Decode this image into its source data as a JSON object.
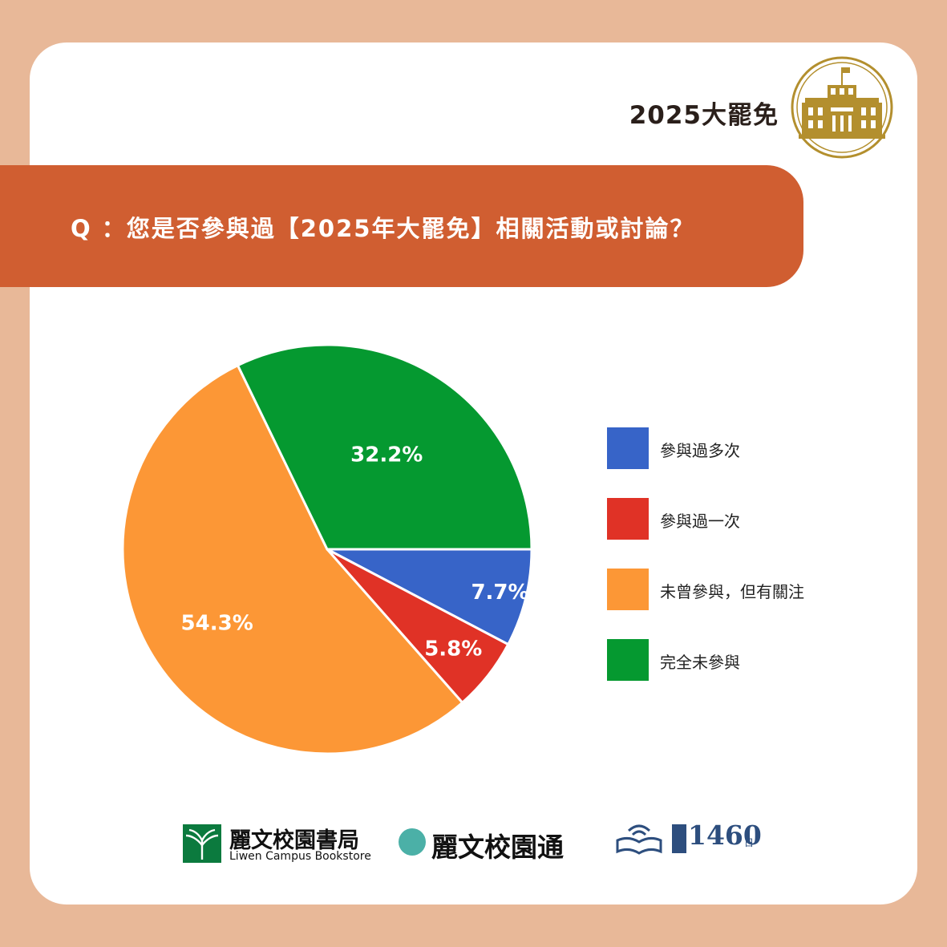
{
  "brand": {
    "title": "2025大罷免",
    "emblem_icon": "parliament-building-icon",
    "emblem_color": "#b38f2e"
  },
  "question": "Q ：您是否參與過【2025年大罷免】相關活動或討論？",
  "chart_data": {
    "type": "pie",
    "title": "",
    "start_angle_deg": 90,
    "direction": "counterclockwise",
    "series": [
      {
        "name": "參與過多次",
        "value": 7.7,
        "label": "7.7%",
        "color": "#3764c8"
      },
      {
        "name": "參與過一次",
        "value": 5.8,
        "label": "5.8%",
        "color": "#e03226"
      },
      {
        "name": "未曾參與，但有關注",
        "value": 54.3,
        "label": "54.3%",
        "color": "#fc9736"
      },
      {
        "name": "完全未參與",
        "value": 32.2,
        "label": "32.2%",
        "color": "#059930"
      }
    ],
    "legend_position": "right"
  },
  "footer": {
    "bookstore_name": "麗文校園書局",
    "bookstore_en": "Liwen Campus Bookstore",
    "bookstore_icon": "tree-logo-icon",
    "tong_name": "麗文校園通",
    "tong_icon": "tong-badge-icon",
    "days_number": "1460",
    "days_unit": "日",
    "days_icon": "book-wifi-icon"
  }
}
